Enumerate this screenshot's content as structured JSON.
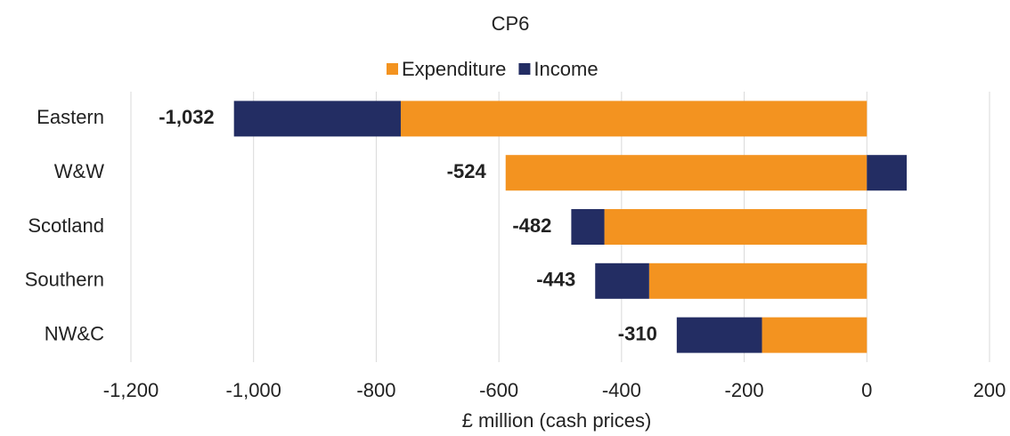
{
  "chart_data": {
    "type": "bar",
    "orientation": "horizontal",
    "stacked": true,
    "title": "CP6",
    "x_label": "£ million (cash prices)",
    "categories": [
      "Eastern",
      "W&W",
      "Scotland",
      "Southern",
      "NW&C"
    ],
    "series": [
      {
        "name": "Expenditure",
        "color": "#f39320",
        "values": [
          -760,
          -589,
          -428,
          -355,
          -171
        ]
      },
      {
        "name": "Income",
        "color": "#232d63",
        "values": [
          -272,
          65,
          -54,
          -88,
          -139
        ]
      }
    ],
    "totals": [
      -1032,
      -524,
      -482,
      -443,
      -310
    ],
    "total_labels": [
      "-1,032",
      "-524",
      "-482",
      "-443",
      "-310"
    ],
    "xlim": [
      -1200,
      200
    ],
    "xticks": [
      {
        "value": -1200,
        "label": "-1,200"
      },
      {
        "value": -1000,
        "label": "-1,000"
      },
      -800,
      -600,
      -400,
      -200,
      0,
      200
    ],
    "grid": true,
    "legend": "top"
  }
}
